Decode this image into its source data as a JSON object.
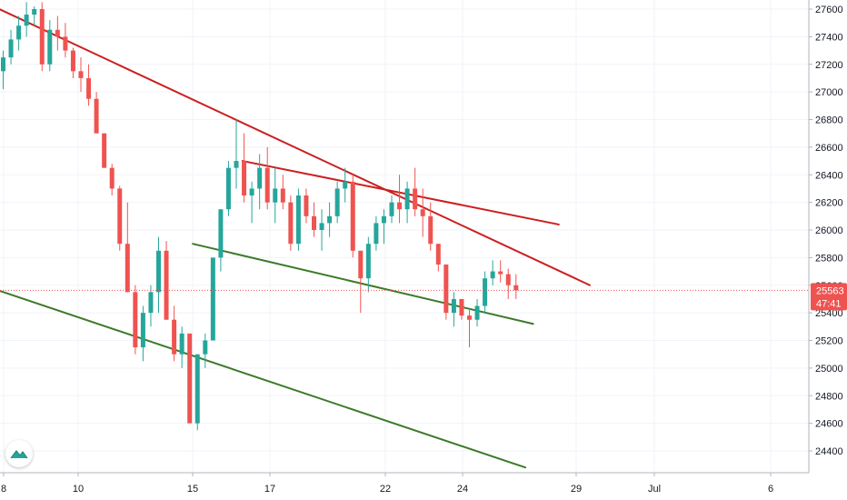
{
  "chart_data": {
    "type": "candlestick",
    "price_axis": {
      "ticks": [
        24400,
        24600,
        24800,
        25000,
        25200,
        25400,
        25600,
        25800,
        26000,
        26200,
        26400,
        26600,
        26800,
        27000,
        27200,
        27400,
        27600
      ],
      "ylim": [
        24250,
        27650
      ]
    },
    "time_axis": {
      "tick_labels": [
        "8",
        "10",
        "15",
        "17",
        "22",
        "24",
        "29",
        "Jul",
        "6"
      ]
    },
    "last_price": {
      "value": 25563,
      "label": "25563",
      "countdown": "47:41",
      "color": "#ef5350"
    },
    "colors": {
      "up": "#26a69a",
      "down": "#ef5350",
      "resistance": "#cc1f1f",
      "support": "#3d7a2a",
      "grid": "#f0f3fa"
    },
    "candles": [
      [
        27150,
        27300,
        27020,
        27250
      ],
      [
        27250,
        27450,
        27200,
        27380
      ],
      [
        27380,
        27550,
        27300,
        27480
      ],
      [
        27480,
        27650,
        27400,
        27560
      ],
      [
        27560,
        27620,
        27480,
        27600
      ],
      [
        27600,
        27650,
        27150,
        27200
      ],
      [
        27200,
        27520,
        27150,
        27450
      ],
      [
        27450,
        27550,
        27300,
        27400
      ],
      [
        27400,
        27500,
        27250,
        27300
      ],
      [
        27300,
        27320,
        27100,
        27150
      ],
      [
        27150,
        27250,
        27000,
        27100
      ],
      [
        27100,
        27200,
        26900,
        26950
      ],
      [
        26950,
        27000,
        26700,
        26700
      ],
      [
        26700,
        26700,
        26450,
        26450
      ],
      [
        26450,
        26480,
        26250,
        26300
      ],
      [
        26300,
        26320,
        25850,
        25900
      ],
      [
        25900,
        26200,
        25550,
        25550
      ],
      [
        25550,
        25600,
        25100,
        25150
      ],
      [
        25150,
        25450,
        25050,
        25400
      ],
      [
        25400,
        25600,
        25300,
        25550
      ],
      [
        25550,
        25950,
        25400,
        25850
      ],
      [
        25850,
        25920,
        25350,
        25350
      ],
      [
        25350,
        25450,
        25050,
        25100
      ],
      [
        25100,
        25300,
        25000,
        25250
      ],
      [
        25250,
        25250,
        24600,
        24600
      ],
      [
        24600,
        25100,
        24550,
        25100
      ],
      [
        25100,
        25250,
        25000,
        25200
      ],
      [
        25200,
        25800,
        25200,
        25800
      ],
      [
        25800,
        26150,
        25700,
        26150
      ],
      [
        26150,
        26500,
        26100,
        26450
      ],
      [
        26450,
        26800,
        26300,
        26500
      ],
      [
        26500,
        26700,
        26200,
        26250
      ],
      [
        26250,
        26350,
        26050,
        26300
      ],
      [
        26300,
        26550,
        26150,
        26450
      ],
      [
        26450,
        26600,
        26150,
        26200
      ],
      [
        26200,
        26450,
        26050,
        26300
      ],
      [
        26300,
        26400,
        26150,
        26200
      ],
      [
        26200,
        26250,
        25850,
        25900
      ],
      [
        25900,
        26300,
        25850,
        26250
      ],
      [
        26250,
        26300,
        26050,
        26100
      ],
      [
        26100,
        26200,
        25950,
        26000
      ],
      [
        26000,
        26150,
        25850,
        26050
      ],
      [
        26050,
        26200,
        25950,
        26100
      ],
      [
        26100,
        26350,
        26050,
        26300
      ],
      [
        26300,
        26450,
        26200,
        26350
      ],
      [
        26350,
        26400,
        25800,
        25850
      ],
      [
        25850,
        25850,
        25400,
        25650
      ],
      [
        25650,
        25950,
        25550,
        25900
      ],
      [
        25900,
        26100,
        25850,
        26050
      ],
      [
        26050,
        26150,
        25900,
        26100
      ],
      [
        26100,
        26250,
        26050,
        26200
      ],
      [
        26200,
        26400,
        26050,
        26150
      ],
      [
        26150,
        26350,
        26050,
        26300
      ],
      [
        26300,
        26450,
        26100,
        26150
      ],
      [
        26150,
        26300,
        25950,
        26100
      ],
      [
        26100,
        26200,
        25850,
        25900
      ],
      [
        25900,
        25900,
        25700,
        25750
      ],
      [
        25750,
        25750,
        25350,
        25400
      ],
      [
        25400,
        25550,
        25300,
        25500
      ],
      [
        25500,
        25500,
        25350,
        25380
      ],
      [
        25380,
        25420,
        25150,
        25350
      ],
      [
        25350,
        25500,
        25300,
        25450
      ],
      [
        25450,
        25700,
        25400,
        25650
      ],
      [
        25650,
        25780,
        25600,
        25700
      ],
      [
        25700,
        25780,
        25620,
        25680
      ],
      [
        25680,
        25720,
        25500,
        25600
      ],
      [
        25600,
        25680,
        25500,
        25563
      ]
    ],
    "trend_lines": [
      {
        "name": "upper-resistance",
        "color": "#cc1f1f",
        "from": [
          -0.5,
          27600
        ],
        "to": [
          75.5,
          25600
        ]
      },
      {
        "name": "inner-resistance",
        "color": "#cc1f1f",
        "from": [
          30.8,
          26500
        ],
        "to": [
          71.5,
          26040
        ]
      },
      {
        "name": "inner-support",
        "color": "#3d7a2a",
        "from": [
          24.4,
          25900
        ],
        "to": [
          68.2,
          25320
        ]
      },
      {
        "name": "lower-support",
        "color": "#3d7a2a",
        "from": [
          -0.5,
          25560
        ],
        "to": [
          67.2,
          24280
        ]
      }
    ]
  },
  "icons": {
    "logo": "tradingview-cloud-icon"
  }
}
